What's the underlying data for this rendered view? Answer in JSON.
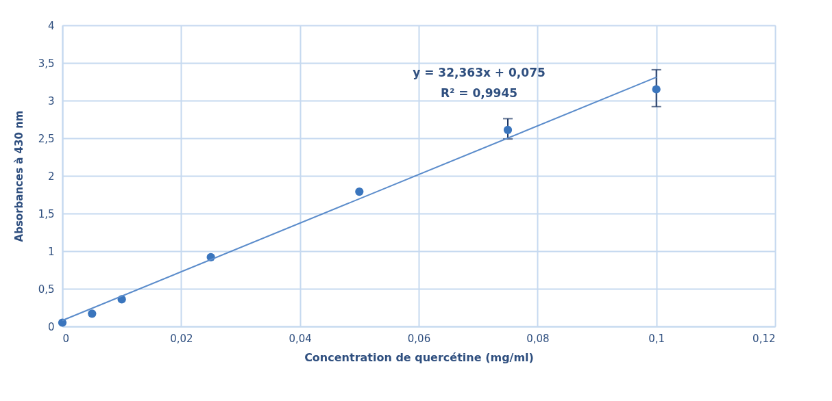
{
  "chart_data": {
    "type": "scatter",
    "xlabel": "Concentration de quercétine (mg/ml)",
    "ylabel": "Absorbances à  430 nm",
    "x": [
      0,
      0.005,
      0.01,
      0.025,
      0.05,
      0.075,
      0.1
    ],
    "series": [
      {
        "color": "#3a75bd",
        "values": [
          0.05,
          0.17,
          0.36,
          0.92,
          1.79,
          2.61,
          3.15
        ],
        "errors": [
          null,
          null,
          null,
          null,
          null,
          [
            2.49,
            2.76
          ],
          [
            2.92,
            3.41
          ]
        ]
      },
      {
        "type": "line",
        "marker": "none",
        "line_style": "solid",
        "color": "#5b8ccb",
        "x": [
          0,
          0.1
        ],
        "values": [
          0.08,
          3.31
        ]
      }
    ],
    "marker": "circle",
    "xlim": [
      0,
      0.12
    ],
    "ylim": [
      0,
      4
    ],
    "xticks": [
      0,
      {
        "value": 0.02,
        "label": "0,02"
      },
      {
        "value": 0.04,
        "label": "0,04"
      },
      {
        "value": 0.06,
        "label": "0,06"
      },
      {
        "value": 0.08,
        "label": "0,08"
      },
      {
        "value": 0.1,
        "label": "0,1"
      },
      {
        "value": 0.12,
        "label": "0,12"
      }
    ],
    "yticks": [
      0,
      {
        "value": 0.5,
        "label": "0,5"
      },
      1,
      {
        "value": 1.5,
        "label": "1,5"
      },
      2,
      {
        "value": 2.5,
        "label": "2,5"
      },
      3,
      {
        "value": 3.5,
        "label": "3,5"
      },
      4
    ],
    "grid": true,
    "annotations": [
      "y = 32,363x + 0,075",
      "R² = 0,9945"
    ]
  }
}
